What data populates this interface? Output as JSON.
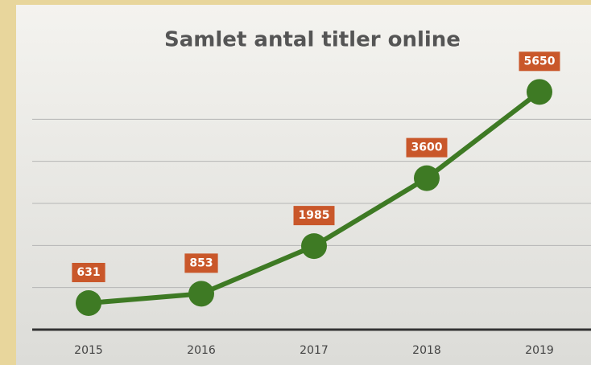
{
  "chart_data": {
    "type": "line",
    "title": "Samlet antal titler online",
    "categories": [
      "2015",
      "2016",
      "2017",
      "2018",
      "2019"
    ],
    "series": [
      {
        "name": "Samlet antal titler online",
        "color": "#3e7a24",
        "values": [
          631,
          853,
          1985,
          3600,
          5650
        ]
      }
    ],
    "label_color": "#c9572a",
    "ylim": [
      0,
      6000
    ],
    "yticks": [
      0,
      1000,
      2000,
      3000,
      4000,
      5000
    ],
    "grid": true
  }
}
